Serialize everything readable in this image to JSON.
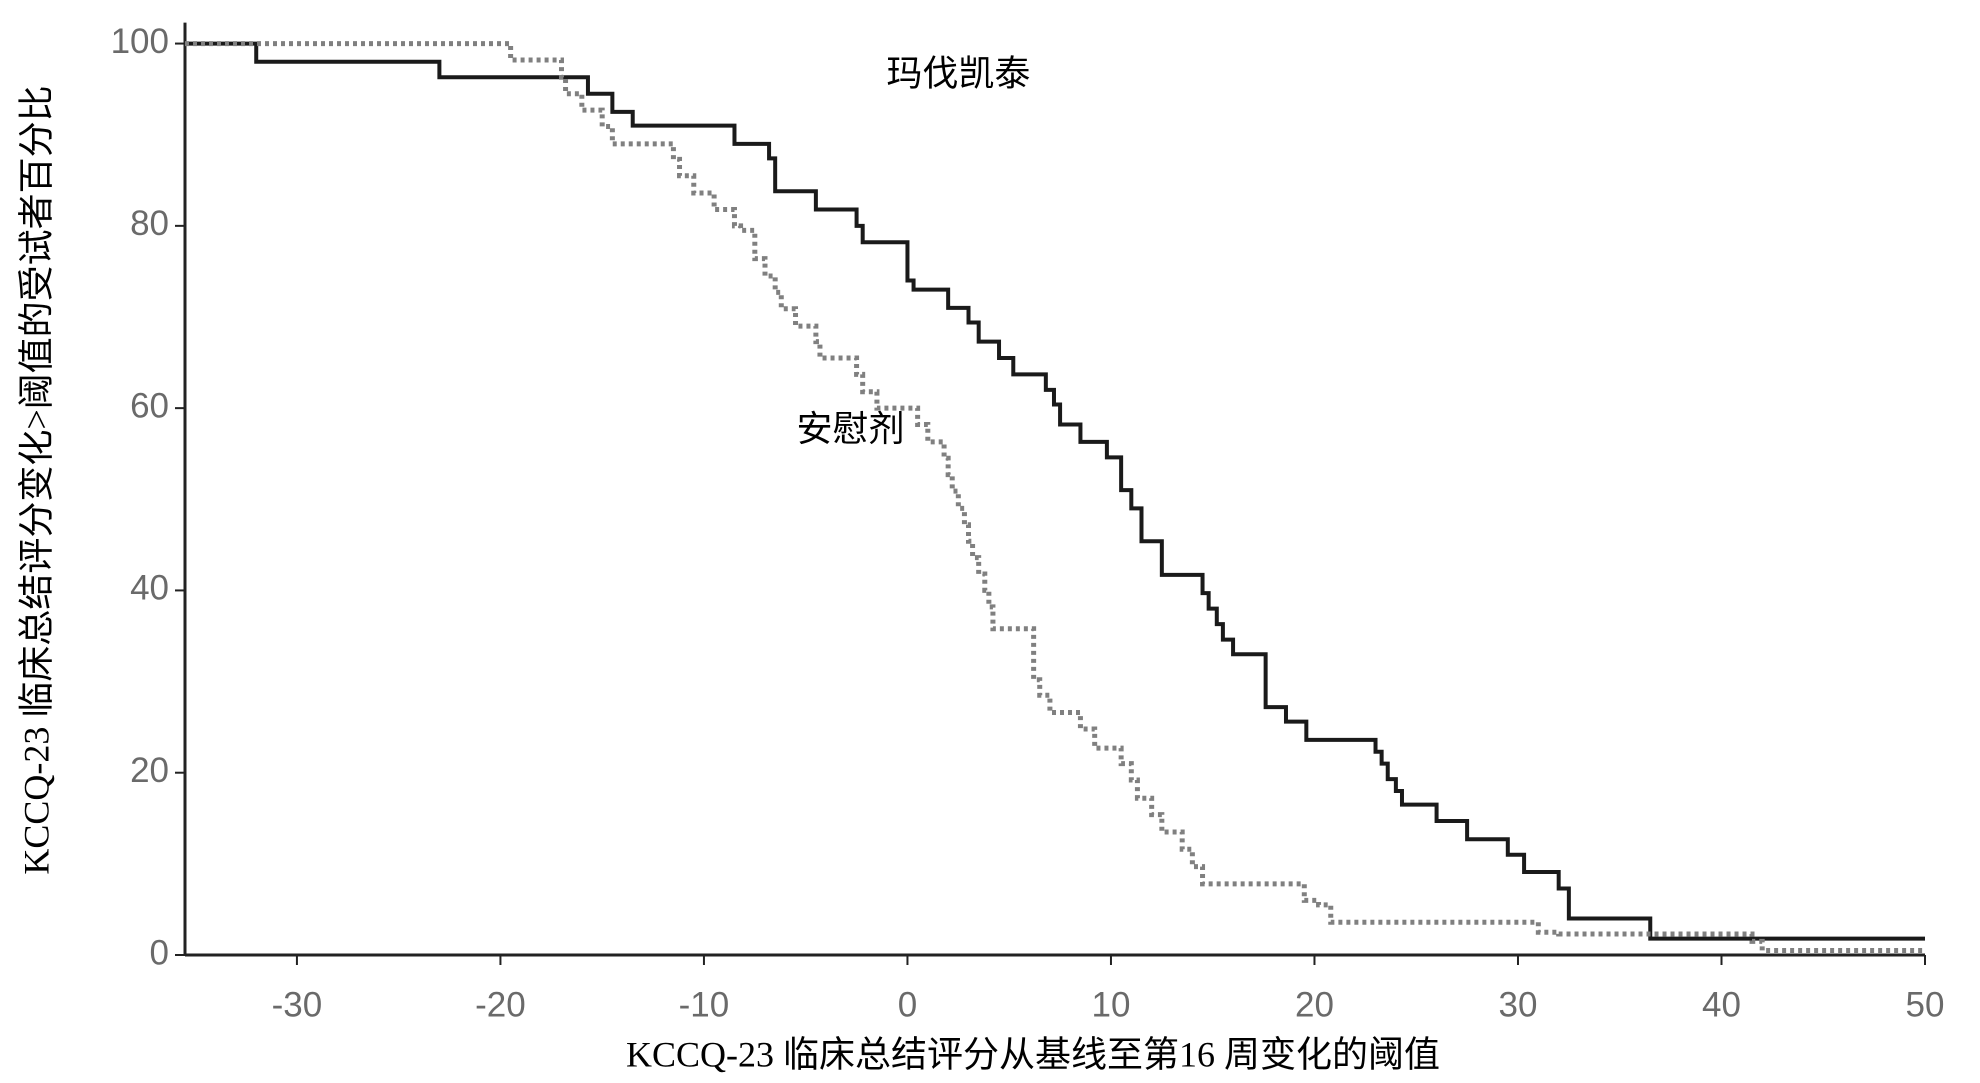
{
  "chart_data": {
    "type": "line",
    "drawstyle": "steps-post",
    "xlabel": "KCCQ-23 临床总结评分从基线至第16 周变化的阈值",
    "ylabel": "KCCQ-23  临床总结评分变化>阈值的受试者百分比",
    "xlim": [
      -35.5,
      50
    ],
    "ylim": [
      0,
      102.3
    ],
    "xticks": [
      -30,
      -20,
      -10,
      0,
      10,
      20,
      30,
      40,
      50
    ],
    "yticks": [
      0,
      20,
      40,
      60,
      80,
      100
    ],
    "annotations": [
      {
        "text": "玛伐凯泰",
        "x": 2.5,
        "y": 96.5
      },
      {
        "text": "安慰剂",
        "x": -2.8,
        "y": 57.5
      }
    ],
    "series": [
      {
        "name": "玛伐凯泰",
        "color": "#1a1a1a",
        "style": "solid",
        "x": [
          -35.5,
          -32,
          -23,
          -15.7,
          -14.5,
          -13.5,
          -8.5,
          -6.8,
          -6.5,
          -4.5,
          -2.5,
          -2.2,
          0,
          0.3,
          2,
          3,
          3.5,
          4.5,
          5.2,
          6.8,
          7.2,
          7.5,
          8.5,
          9.8,
          10.5,
          11,
          11.5,
          12.5,
          14.5,
          14.8,
          15.2,
          15.5,
          16,
          17.6,
          18.6,
          19.6,
          23,
          23.3,
          23.6,
          24,
          24.3,
          26,
          27.5,
          29.5,
          30.3,
          32,
          32.5,
          36.5,
          50
        ],
        "values": [
          100,
          98,
          96.3,
          94.5,
          92.5,
          91,
          89,
          87.4,
          83.8,
          81.8,
          80,
          78.2,
          74,
          73,
          71,
          69.4,
          67.3,
          65.5,
          63.7,
          62,
          60.4,
          58.2,
          56.3,
          54.6,
          51,
          49,
          45.4,
          41.7,
          39.7,
          38,
          36.3,
          34.6,
          33,
          27.2,
          25.6,
          23.6,
          22.3,
          21,
          19.3,
          18,
          16.5,
          14.7,
          12.7,
          11,
          9.1,
          7.3,
          4,
          1.8,
          1.8
        ]
      },
      {
        "name": "安慰剂",
        "color": "#808080",
        "style": "dotted",
        "x": [
          -35.5,
          -19.5,
          -17,
          -16.8,
          -16,
          -15,
          -14.5,
          -11.5,
          -11.2,
          -10.5,
          -9.5,
          -8.5,
          -8.2,
          -7.5,
          -7,
          -6.5,
          -6.2,
          -5.5,
          -4.5,
          -4.3,
          -2.5,
          -2.2,
          -1.5,
          0.5,
          1,
          1.8,
          2,
          2.2,
          2.5,
          2.8,
          3,
          3.2,
          3.5,
          3.8,
          4,
          4.2,
          6.2,
          6.5,
          7,
          8.5,
          9.2,
          10.5,
          11,
          11.3,
          12,
          12.5,
          13.5,
          14,
          14.5,
          19.5,
          20.2,
          20.8,
          31,
          32,
          41.5,
          42,
          50
        ],
        "values": [
          100,
          98.2,
          96.3,
          94.5,
          92.7,
          90.9,
          89,
          87.3,
          85.5,
          83.6,
          81.8,
          80,
          79.5,
          76.4,
          74.5,
          72.7,
          70.9,
          69,
          67.3,
          65.5,
          63.7,
          61.8,
          60,
          58.2,
          56.3,
          54.5,
          52.7,
          50.9,
          49,
          47.2,
          45.4,
          43.6,
          41.8,
          40,
          38.2,
          35.8,
          30.2,
          28.5,
          26.6,
          24.8,
          22.7,
          21,
          19.2,
          17.2,
          15.4,
          13.5,
          11.6,
          9.7,
          7.8,
          6,
          5.5,
          3.6,
          2.5,
          2.3,
          1.5,
          0.5,
          0.5
        ]
      }
    ]
  }
}
